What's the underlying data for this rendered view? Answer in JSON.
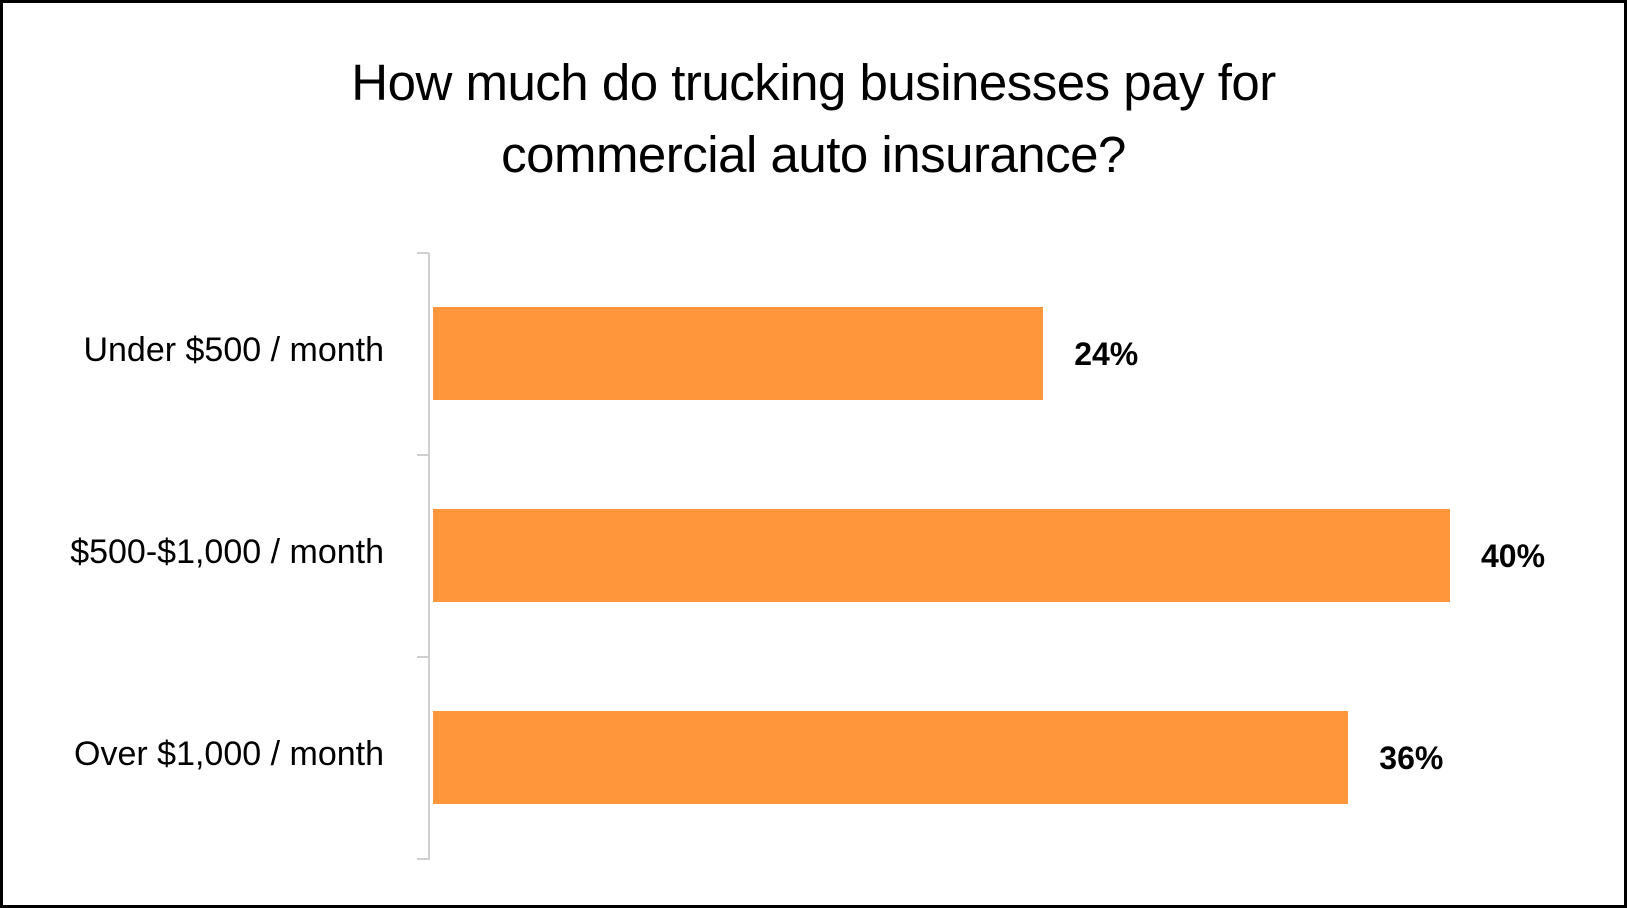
{
  "chart_data": {
    "type": "bar",
    "orientation": "horizontal",
    "title": "How much do trucking businesses pay for commercial auto insurance?",
    "title_lines": [
      "How much do trucking businesses pay for",
      "commercial auto insurance?"
    ],
    "categories": [
      "Under $500 / month",
      "$500-$1,000 / month",
      "Over $1,000 / month"
    ],
    "values": [
      24,
      40,
      36
    ],
    "value_labels": [
      "24%",
      "40%",
      "36%"
    ],
    "unit": "%",
    "xlabel": "",
    "ylabel": "",
    "xlim": [
      0,
      40
    ],
    "grid": false,
    "legend": null,
    "bar_color": "#FF963C"
  },
  "colors": {
    "bar": "#FF963C",
    "axis": "#D0D0D0",
    "text": "#000000",
    "border": "#000000",
    "background": "#FFFFFF"
  }
}
